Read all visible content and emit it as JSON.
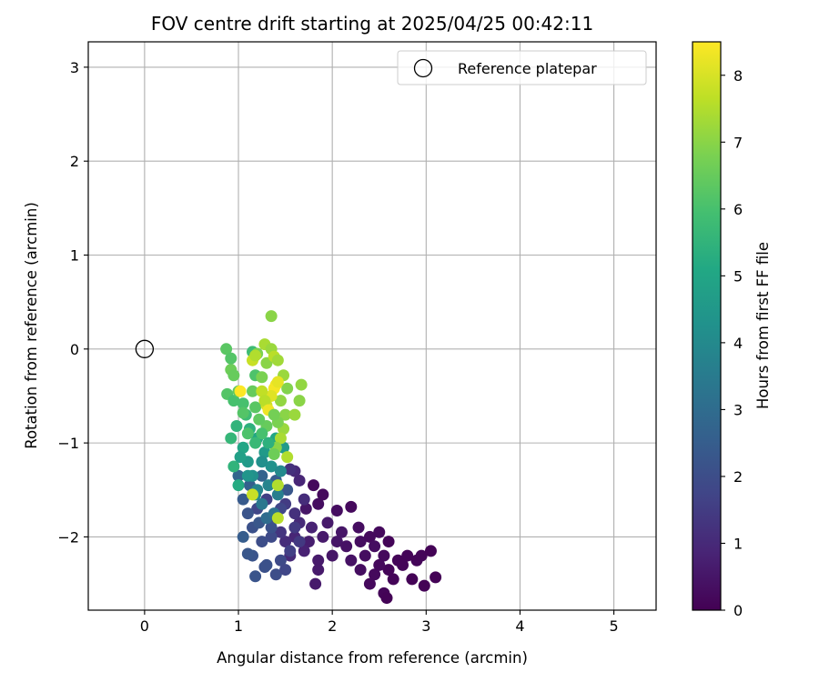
{
  "chart_data": {
    "type": "scatter",
    "title": "FOV centre drift starting at 2025/04/25 00:42:11",
    "xlabel": "Angular distance from reference (arcmin)",
    "ylabel": "Rotation from reference (arcmin)",
    "xlim": [
      -0.6,
      5.45
    ],
    "ylim": [
      -2.78,
      3.27
    ],
    "xticks": [
      0,
      1,
      2,
      3,
      4,
      5
    ],
    "yticks": [
      -2,
      -1,
      0,
      1,
      2,
      3
    ],
    "xtick_labels": [
      "0",
      "1",
      "2",
      "3",
      "4",
      "5"
    ],
    "ytick_labels": [
      "−2",
      "−1",
      "0",
      "1",
      "2",
      "3"
    ],
    "grid": true,
    "legend": {
      "position": "top-right",
      "entries": [
        {
          "label": "Reference platepar",
          "marker": "open-circle"
        }
      ]
    },
    "reference_point": {
      "x": 0,
      "y": 0
    },
    "colorbar": {
      "label": "Hours from first FF file",
      "range": [
        0,
        8.5
      ],
      "ticks": [
        0,
        1,
        2,
        3,
        4,
        5,
        6,
        7,
        8
      ],
      "colormap": "viridis",
      "colors": [
        "#440154",
        "#482475",
        "#414487",
        "#355f8d",
        "#2a788e",
        "#21918c",
        "#22a884",
        "#44bf70",
        "#7ad151",
        "#bddf26",
        "#fde725"
      ]
    },
    "series": [
      {
        "color_by": "hours",
        "points": [
          {
            "x": 1.8,
            "y": -1.45,
            "h": 0.2
          },
          {
            "x": 1.85,
            "y": -1.65,
            "h": 0.3
          },
          {
            "x": 1.72,
            "y": -1.7,
            "h": 0.5
          },
          {
            "x": 1.9,
            "y": -1.55,
            "h": 0.2
          },
          {
            "x": 2.05,
            "y": -1.72,
            "h": 0.3
          },
          {
            "x": 2.2,
            "y": -1.68,
            "h": 0.2
          },
          {
            "x": 2.28,
            "y": -1.9,
            "h": 0.3
          },
          {
            "x": 2.1,
            "y": -1.95,
            "h": 0.5
          },
          {
            "x": 1.95,
            "y": -1.85,
            "h": 0.6
          },
          {
            "x": 1.78,
            "y": -1.9,
            "h": 0.8
          },
          {
            "x": 1.65,
            "y": -1.85,
            "h": 1.0
          },
          {
            "x": 1.6,
            "y": -2.0,
            "h": 0.9
          },
          {
            "x": 1.75,
            "y": -2.05,
            "h": 0.7
          },
          {
            "x": 1.9,
            "y": -2.0,
            "h": 0.6
          },
          {
            "x": 2.05,
            "y": -2.05,
            "h": 0.5
          },
          {
            "x": 2.15,
            "y": -2.1,
            "h": 0.4
          },
          {
            "x": 2.3,
            "y": -2.05,
            "h": 0.3
          },
          {
            "x": 2.4,
            "y": -2.0,
            "h": 0.2
          },
          {
            "x": 2.5,
            "y": -1.95,
            "h": 0.2
          },
          {
            "x": 2.45,
            "y": -2.1,
            "h": 0.3
          },
          {
            "x": 2.6,
            "y": -2.05,
            "h": 0.1
          },
          {
            "x": 2.55,
            "y": -2.2,
            "h": 0.2
          },
          {
            "x": 2.35,
            "y": -2.2,
            "h": 0.3
          },
          {
            "x": 2.2,
            "y": -2.25,
            "h": 0.4
          },
          {
            "x": 2.0,
            "y": -2.2,
            "h": 0.5
          },
          {
            "x": 1.85,
            "y": -2.25,
            "h": 0.6
          },
          {
            "x": 1.7,
            "y": -2.15,
            "h": 0.8
          },
          {
            "x": 1.55,
            "y": -2.2,
            "h": 1.0
          },
          {
            "x": 1.5,
            "y": -2.05,
            "h": 1.1
          },
          {
            "x": 1.45,
            "y": -1.95,
            "h": 1.3
          },
          {
            "x": 1.6,
            "y": -1.75,
            "h": 1.2
          },
          {
            "x": 2.3,
            "y": -2.35,
            "h": 0.3
          },
          {
            "x": 2.45,
            "y": -2.4,
            "h": 0.2
          },
          {
            "x": 2.6,
            "y": -2.35,
            "h": 0.1
          },
          {
            "x": 2.5,
            "y": -2.3,
            "h": 0.2
          },
          {
            "x": 2.7,
            "y": -2.25,
            "h": 0.1
          },
          {
            "x": 2.8,
            "y": -2.2,
            "h": 0.1
          },
          {
            "x": 2.9,
            "y": -2.25,
            "h": 0.1
          },
          {
            "x": 2.95,
            "y": -2.2,
            "h": 0.1
          },
          {
            "x": 3.05,
            "y": -2.15,
            "h": 0.05
          },
          {
            "x": 2.85,
            "y": -2.45,
            "h": 0.05
          },
          {
            "x": 2.98,
            "y": -2.52,
            "h": 0.05
          },
          {
            "x": 3.1,
            "y": -2.43,
            "h": 0.05
          },
          {
            "x": 2.55,
            "y": -2.6,
            "h": 0.1
          },
          {
            "x": 2.58,
            "y": -2.65,
            "h": 0.05
          },
          {
            "x": 2.4,
            "y": -2.5,
            "h": 0.2
          },
          {
            "x": 1.82,
            "y": -2.5,
            "h": 0.6
          },
          {
            "x": 1.85,
            "y": -2.35,
            "h": 0.6
          },
          {
            "x": 2.65,
            "y": -2.45,
            "h": 0.1
          },
          {
            "x": 2.75,
            "y": -2.3,
            "h": 0.1
          },
          {
            "x": 1.3,
            "y": -1.6,
            "h": 1.6
          },
          {
            "x": 1.2,
            "y": -1.7,
            "h": 1.8
          },
          {
            "x": 1.4,
            "y": -1.8,
            "h": 1.7
          },
          {
            "x": 1.5,
            "y": -1.65,
            "h": 1.5
          },
          {
            "x": 1.35,
            "y": -2.0,
            "h": 1.9
          },
          {
            "x": 1.25,
            "y": -2.05,
            "h": 2.0
          },
          {
            "x": 1.15,
            "y": -1.9,
            "h": 2.1
          },
          {
            "x": 1.1,
            "y": -1.75,
            "h": 2.2
          },
          {
            "x": 1.05,
            "y": -1.6,
            "h": 2.4
          },
          {
            "x": 1.15,
            "y": -2.2,
            "h": 2.2
          },
          {
            "x": 1.3,
            "y": -2.3,
            "h": 2.1
          },
          {
            "x": 1.45,
            "y": -2.25,
            "h": 1.9
          },
          {
            "x": 1.55,
            "y": -2.15,
            "h": 1.6
          },
          {
            "x": 1.65,
            "y": -2.05,
            "h": 1.4
          },
          {
            "x": 1.4,
            "y": -2.4,
            "h": 2.0
          },
          {
            "x": 1.18,
            "y": -2.42,
            "h": 2.2
          },
          {
            "x": 1.28,
            "y": -2.32,
            "h": 2.1
          },
          {
            "x": 1.1,
            "y": -2.18,
            "h": 2.3
          },
          {
            "x": 1.0,
            "y": -1.35,
            "h": 2.8
          },
          {
            "x": 1.12,
            "y": -1.45,
            "h": 2.6
          },
          {
            "x": 1.25,
            "y": -1.35,
            "h": 2.7
          },
          {
            "x": 1.4,
            "y": -1.4,
            "h": 2.5
          },
          {
            "x": 1.52,
            "y": -1.5,
            "h": 2.3
          },
          {
            "x": 1.6,
            "y": -1.3,
            "h": 1.0
          },
          {
            "x": 1.65,
            "y": -1.4,
            "h": 0.9
          },
          {
            "x": 1.55,
            "y": -1.28,
            "h": 1.2
          },
          {
            "x": 1.05,
            "y": -2.0,
            "h": 2.5
          },
          {
            "x": 1.22,
            "y": -1.85,
            "h": 2.3
          },
          {
            "x": 1.35,
            "y": -1.9,
            "h": 2.1
          },
          {
            "x": 1.45,
            "y": -1.7,
            "h": 1.8
          },
          {
            "x": 1.6,
            "y": -1.9,
            "h": 1.4
          },
          {
            "x": 1.7,
            "y": -1.6,
            "h": 1.1
          },
          {
            "x": 1.5,
            "y": -2.35,
            "h": 1.8
          },
          {
            "x": 1.0,
            "y": -1.45,
            "h": 5.2
          },
          {
            "x": 0.95,
            "y": -1.25,
            "h": 5.5
          },
          {
            "x": 0.92,
            "y": -0.95,
            "h": 5.6
          },
          {
            "x": 0.98,
            "y": -0.82,
            "h": 5.5
          },
          {
            "x": 1.05,
            "y": -1.05,
            "h": 5.0
          },
          {
            "x": 1.1,
            "y": -1.2,
            "h": 4.6
          },
          {
            "x": 1.15,
            "y": -1.35,
            "h": 4.2
          },
          {
            "x": 1.2,
            "y": -1.5,
            "h": 3.8
          },
          {
            "x": 1.25,
            "y": -1.65,
            "h": 3.4
          },
          {
            "x": 1.3,
            "y": -1.8,
            "h": 3.0
          },
          {
            "x": 1.08,
            "y": -0.7,
            "h": 5.8
          },
          {
            "x": 1.12,
            "y": -0.85,
            "h": 5.4
          },
          {
            "x": 1.2,
            "y": -0.95,
            "h": 5.0
          },
          {
            "x": 1.28,
            "y": -1.1,
            "h": 4.6
          },
          {
            "x": 1.35,
            "y": -1.25,
            "h": 4.3
          },
          {
            "x": 1.42,
            "y": -1.55,
            "h": 3.6
          },
          {
            "x": 1.38,
            "y": -1.75,
            "h": 3.2
          },
          {
            "x": 1.18,
            "y": -1.55,
            "h": 4.0
          },
          {
            "x": 1.1,
            "y": -1.35,
            "h": 4.4
          },
          {
            "x": 1.02,
            "y": -1.15,
            "h": 4.8
          },
          {
            "x": 1.25,
            "y": -1.2,
            "h": 4.2
          },
          {
            "x": 1.32,
            "y": -1.45,
            "h": 3.8
          },
          {
            "x": 1.45,
            "y": -1.3,
            "h": 4.0
          },
          {
            "x": 1.48,
            "y": -1.05,
            "h": 4.6
          },
          {
            "x": 1.4,
            "y": -0.95,
            "h": 5.0
          },
          {
            "x": 0.88,
            "y": -0.48,
            "h": 6.2
          },
          {
            "x": 0.95,
            "y": -0.55,
            "h": 6.0
          },
          {
            "x": 1.0,
            "y": -0.45,
            "h": 6.4
          },
          {
            "x": 0.92,
            "y": -0.22,
            "h": 6.6
          },
          {
            "x": 0.95,
            "y": -0.28,
            "h": 6.5
          },
          {
            "x": 0.87,
            "y": 0.0,
            "h": 6.3
          },
          {
            "x": 0.92,
            "y": -0.1,
            "h": 6.2
          },
          {
            "x": 1.05,
            "y": -0.58,
            "h": 6.0
          },
          {
            "x": 1.15,
            "y": -0.45,
            "h": 6.5
          },
          {
            "x": 1.18,
            "y": -0.62,
            "h": 6.3
          },
          {
            "x": 1.15,
            "y": -0.03,
            "h": 5.8
          },
          {
            "x": 1.18,
            "y": -0.28,
            "h": 6.1
          },
          {
            "x": 1.2,
            "y": -0.05,
            "h": 6.8
          },
          {
            "x": 1.25,
            "y": -0.3,
            "h": 6.8
          },
          {
            "x": 1.3,
            "y": -0.15,
            "h": 7.0
          },
          {
            "x": 1.28,
            "y": 0.05,
            "h": 7.4
          },
          {
            "x": 1.35,
            "y": 0.0,
            "h": 7.2
          },
          {
            "x": 1.38,
            "y": -0.08,
            "h": 7.6
          },
          {
            "x": 1.42,
            "y": -0.12,
            "h": 7.3
          },
          {
            "x": 1.35,
            "y": 0.35,
            "h": 7.0
          },
          {
            "x": 1.15,
            "y": -0.12,
            "h": 7.8
          },
          {
            "x": 1.18,
            "y": -0.07,
            "h": 7.5
          },
          {
            "x": 1.48,
            "y": -0.28,
            "h": 7.2
          },
          {
            "x": 1.52,
            "y": -0.42,
            "h": 6.9
          },
          {
            "x": 1.45,
            "y": -0.55,
            "h": 7.1
          },
          {
            "x": 1.4,
            "y": -0.38,
            "h": 8.3
          },
          {
            "x": 1.38,
            "y": -0.42,
            "h": 8.4
          },
          {
            "x": 1.42,
            "y": -0.35,
            "h": 8.2
          },
          {
            "x": 1.35,
            "y": -0.5,
            "h": 8.1
          },
          {
            "x": 1.3,
            "y": -0.6,
            "h": 7.9
          },
          {
            "x": 1.25,
            "y": -0.45,
            "h": 7.7
          },
          {
            "x": 1.28,
            "y": -0.55,
            "h": 7.6
          },
          {
            "x": 1.02,
            "y": -0.45,
            "h": 8.5
          },
          {
            "x": 1.32,
            "y": -0.65,
            "h": 8.3
          },
          {
            "x": 1.5,
            "y": -0.7,
            "h": 7.0
          },
          {
            "x": 1.48,
            "y": -0.85,
            "h": 7.2
          },
          {
            "x": 1.42,
            "y": -0.78,
            "h": 6.8
          },
          {
            "x": 1.45,
            "y": -0.95,
            "h": 7.4
          },
          {
            "x": 1.4,
            "y": -1.05,
            "h": 7.0
          },
          {
            "x": 1.38,
            "y": -1.12,
            "h": 6.6
          },
          {
            "x": 1.52,
            "y": -1.15,
            "h": 7.5
          },
          {
            "x": 1.6,
            "y": -0.7,
            "h": 7.2
          },
          {
            "x": 1.65,
            "y": -0.55,
            "h": 7.0
          },
          {
            "x": 1.67,
            "y": -0.38,
            "h": 7.1
          },
          {
            "x": 1.42,
            "y": -1.45,
            "h": 7.5
          },
          {
            "x": 1.15,
            "y": -1.55,
            "h": 7.8
          },
          {
            "x": 1.42,
            "y": -1.8,
            "h": 7.6
          },
          {
            "x": 1.3,
            "y": -0.82,
            "h": 6.5
          },
          {
            "x": 1.22,
            "y": -0.75,
            "h": 6.4
          },
          {
            "x": 1.1,
            "y": -0.9,
            "h": 6.1
          },
          {
            "x": 1.05,
            "y": -0.68,
            "h": 6.2
          },
          {
            "x": 1.25,
            "y": -0.9,
            "h": 6.0
          },
          {
            "x": 1.18,
            "y": -1.0,
            "h": 5.7
          },
          {
            "x": 1.32,
            "y": -1.0,
            "h": 5.4
          },
          {
            "x": 1.38,
            "y": -0.7,
            "h": 6.7
          }
        ]
      }
    ]
  }
}
